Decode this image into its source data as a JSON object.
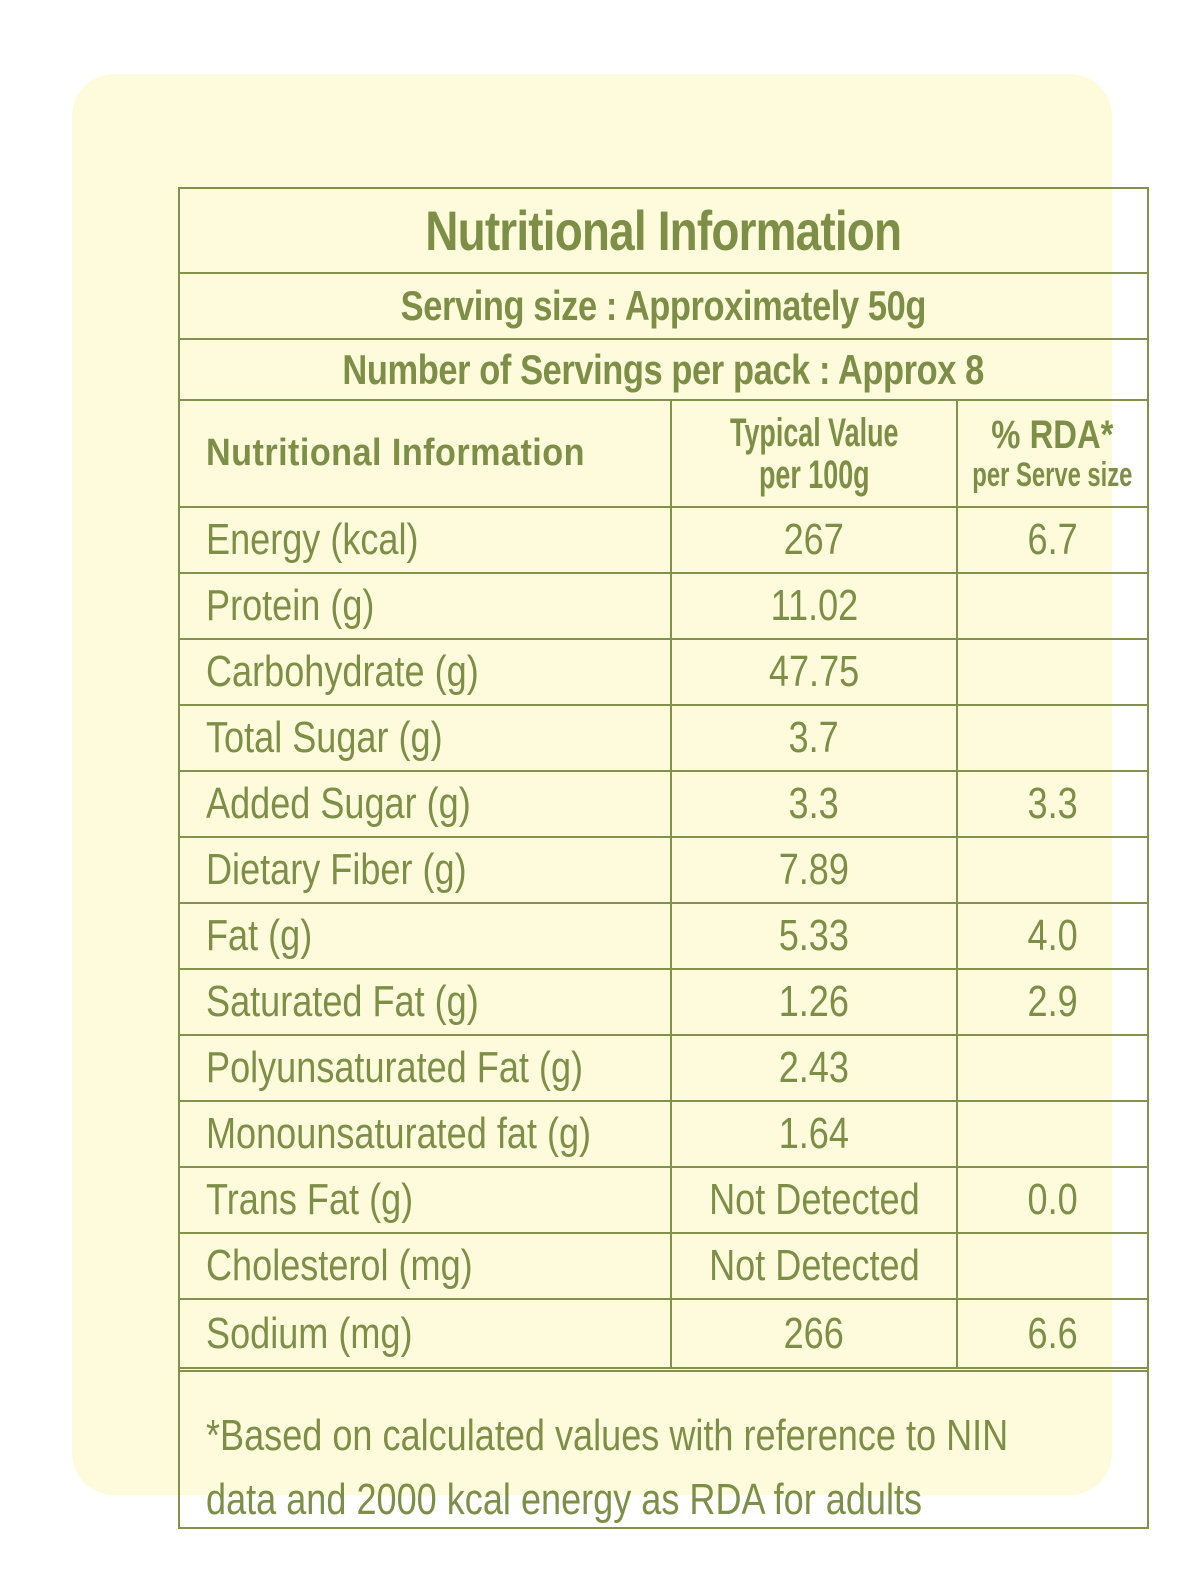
{
  "label": {
    "title": "Nutritional Information",
    "serving_size": "Serving size : Approximately 50g",
    "servings_per_pack": "Number of Servings per pack : Approx 8",
    "columns": {
      "nutrient": "Nutritional Information",
      "typical_line1": "Typical Value",
      "typical_line2": "per 100g",
      "rda_line1": "% RDA*",
      "rda_line2": "per Serve size"
    },
    "rows": [
      {
        "nutrient": "Energy (kcal)",
        "per_100g": "267",
        "rda": "6.7"
      },
      {
        "nutrient": "Protein (g)",
        "per_100g": "11.02",
        "rda": ""
      },
      {
        "nutrient": "Carbohydrate (g)",
        "per_100g": "47.75",
        "rda": ""
      },
      {
        "nutrient": "Total Sugar (g)",
        "per_100g": "3.7",
        "rda": ""
      },
      {
        "nutrient": "Added Sugar (g)",
        "per_100g": "3.3",
        "rda": "3.3"
      },
      {
        "nutrient": "Dietary Fiber (g)",
        "per_100g": "7.89",
        "rda": ""
      },
      {
        "nutrient": "Fat (g)",
        "per_100g": "5.33",
        "rda": "4.0"
      },
      {
        "nutrient": "Saturated Fat (g)",
        "per_100g": "1.26",
        "rda": "2.9"
      },
      {
        "nutrient": "Polyunsaturated Fat (g)",
        "per_100g": "2.43",
        "rda": ""
      },
      {
        "nutrient": "Monounsaturated fat (g)",
        "per_100g": "1.64",
        "rda": ""
      },
      {
        "nutrient": "Trans Fat (g)",
        "per_100g": "Not Detected",
        "rda": "0.0"
      },
      {
        "nutrient": "Cholesterol (mg)",
        "per_100g": "Not Detected",
        "rda": ""
      },
      {
        "nutrient": "Sodium (mg)",
        "per_100g": "266",
        "rda": "6.6"
      }
    ],
    "footnote_line1": "*Based on calculated values with reference to NIN",
    "footnote_line2": "data and 2000 kcal energy as RDA for adults"
  },
  "colors": {
    "text": "#7d8f47",
    "border": "#82924d",
    "card_background": "#fefbdc",
    "page_background": "#ffffff"
  }
}
